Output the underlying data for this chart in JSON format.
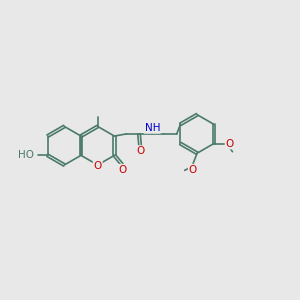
{
  "bg_color": "#e8e8e8",
  "bond_color": "#4a7a6a",
  "O_color": "#cc0000",
  "N_color": "#0000cc",
  "bond_width": 1.2,
  "dbo": 0.06,
  "fs": 7.5,
  "xlim": [
    0,
    14
  ],
  "ylim": [
    0,
    10
  ],
  "ring_r": 0.9
}
